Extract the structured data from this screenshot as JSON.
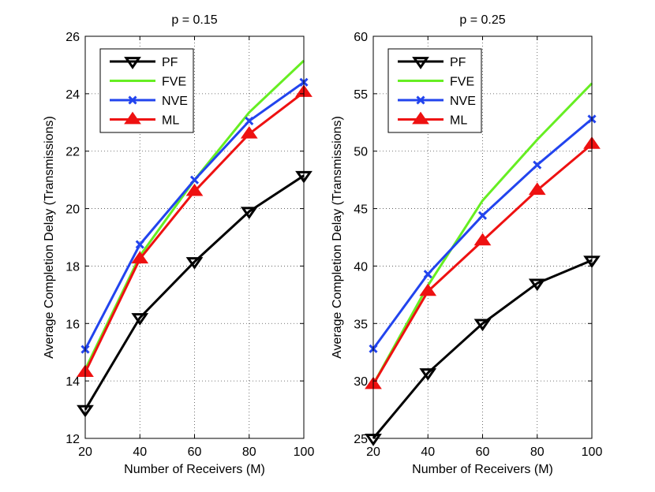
{
  "chart_data": [
    {
      "type": "line",
      "title": "p = 0.15",
      "xlabel": "Number of Receivers (M)",
      "ylabel": "Average Completion Delay (Transmissions)",
      "x": [
        20,
        40,
        60,
        80,
        100
      ],
      "xlim": [
        20,
        100
      ],
      "ylim": [
        12,
        26
      ],
      "xticks": [
        "20",
        "40",
        "60",
        "80",
        "100"
      ],
      "yticks": [
        "12",
        "14",
        "16",
        "18",
        "20",
        "22",
        "24",
        "26"
      ],
      "grid": true,
      "legend_position": "top-left",
      "series": [
        {
          "name": "PF",
          "color": "#000000",
          "marker": "triangle-down",
          "values": [
            13.0,
            16.2,
            18.15,
            19.9,
            21.15
          ]
        },
        {
          "name": "FVE",
          "color": "#66ee22",
          "marker": "none",
          "values": [
            14.4,
            18.35,
            21.0,
            23.35,
            25.15
          ]
        },
        {
          "name": "NVE",
          "color": "#2244ee",
          "marker": "x",
          "values": [
            15.1,
            18.75,
            21.0,
            23.05,
            24.4
          ]
        },
        {
          "name": "ML",
          "color": "#ee1111",
          "marker": "triangle-up",
          "values": [
            14.3,
            18.25,
            20.6,
            22.6,
            24.05
          ]
        }
      ]
    },
    {
      "type": "line",
      "title": "p = 0.25",
      "xlabel": "Number of Receivers (M)",
      "ylabel": "Average Completion Delay (Transmissions)",
      "x": [
        20,
        40,
        60,
        80,
        100
      ],
      "xlim": [
        20,
        100
      ],
      "ylim": [
        25,
        60
      ],
      "xticks": [
        "20",
        "40",
        "60",
        "80",
        "100"
      ],
      "yticks": [
        "25",
        "30",
        "35",
        "40",
        "45",
        "50",
        "55",
        "60"
      ],
      "grid": true,
      "legend_position": "top-left",
      "series": [
        {
          "name": "PF",
          "color": "#000000",
          "marker": "triangle-down",
          "values": [
            25.0,
            30.7,
            35.0,
            38.5,
            40.5
          ]
        },
        {
          "name": "FVE",
          "color": "#66ee22",
          "marker": "none",
          "values": [
            29.7,
            38.3,
            45.7,
            51.0,
            55.9
          ]
        },
        {
          "name": "NVE",
          "color": "#2244ee",
          "marker": "x",
          "values": [
            32.8,
            39.3,
            44.4,
            48.8,
            52.8
          ]
        },
        {
          "name": "ML",
          "color": "#ee1111",
          "marker": "triangle-up",
          "values": [
            29.7,
            37.8,
            42.2,
            46.6,
            50.6
          ]
        }
      ]
    }
  ]
}
